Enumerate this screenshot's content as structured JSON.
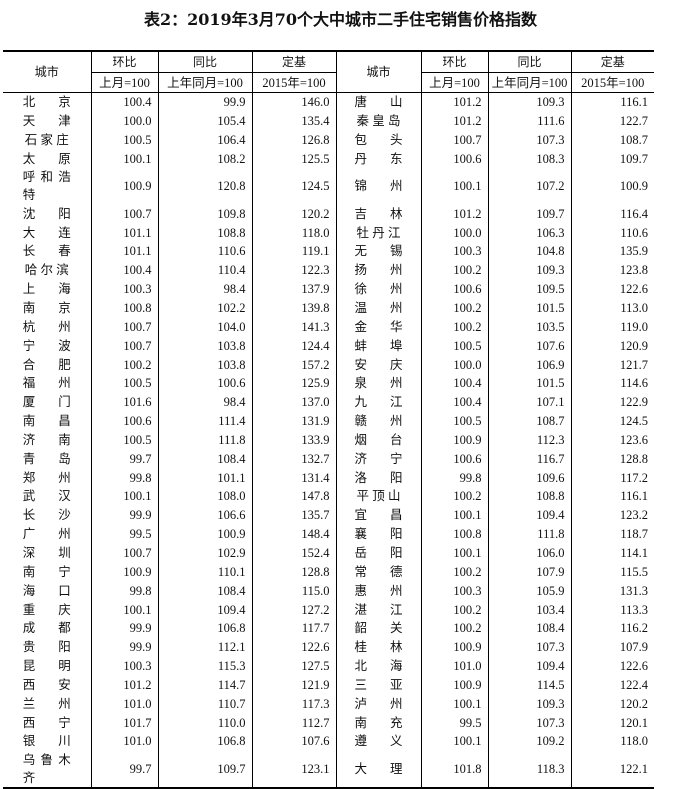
{
  "title": "表2：2019年3月70个大中城市二手住宅销售价格指数",
  "header": {
    "city": "城市",
    "mom": "环比",
    "yoy": "同比",
    "base": "定基",
    "mom_sub": "上月=100",
    "yoy_sub": "上年同月=100",
    "base_sub": "2015年=100"
  },
  "left_rows": [
    [
      "北京",
      "100.4",
      "99.9",
      "146.0"
    ],
    [
      "天津",
      "100.0",
      "105.4",
      "135.4"
    ],
    [
      "石家庄",
      "100.5",
      "106.4",
      "126.8"
    ],
    [
      "太原",
      "100.1",
      "108.2",
      "125.5"
    ],
    [
      "呼和浩特",
      "100.9",
      "120.8",
      "124.5"
    ],
    [
      "沈阳",
      "100.7",
      "109.8",
      "120.2"
    ],
    [
      "大连",
      "101.1",
      "108.8",
      "118.0"
    ],
    [
      "长春",
      "101.1",
      "110.6",
      "119.1"
    ],
    [
      "哈尔滨",
      "100.4",
      "110.4",
      "122.3"
    ],
    [
      "上海",
      "100.3",
      "98.4",
      "137.9"
    ],
    [
      "南京",
      "100.8",
      "102.2",
      "139.8"
    ],
    [
      "杭州",
      "100.7",
      "104.0",
      "141.3"
    ],
    [
      "宁波",
      "100.7",
      "103.8",
      "124.4"
    ],
    [
      "合肥",
      "100.2",
      "103.8",
      "157.2"
    ],
    [
      "福州",
      "100.5",
      "100.6",
      "125.9"
    ],
    [
      "厦门",
      "101.6",
      "98.4",
      "137.0"
    ],
    [
      "南昌",
      "100.6",
      "111.4",
      "131.9"
    ],
    [
      "济南",
      "100.5",
      "111.8",
      "133.9"
    ],
    [
      "青岛",
      "99.7",
      "108.4",
      "132.7"
    ],
    [
      "郑州",
      "99.8",
      "101.1",
      "131.4"
    ],
    [
      "武汉",
      "100.1",
      "108.0",
      "147.8"
    ],
    [
      "长沙",
      "99.9",
      "106.6",
      "135.7"
    ],
    [
      "广州",
      "99.5",
      "100.9",
      "148.4"
    ],
    [
      "深圳",
      "100.7",
      "102.9",
      "152.4"
    ],
    [
      "南宁",
      "100.9",
      "110.1",
      "128.8"
    ],
    [
      "海口",
      "99.8",
      "108.4",
      "115.0"
    ],
    [
      "重庆",
      "100.1",
      "109.4",
      "127.2"
    ],
    [
      "成都",
      "99.9",
      "106.8",
      "117.7"
    ],
    [
      "贵阳",
      "99.9",
      "112.1",
      "122.6"
    ],
    [
      "昆明",
      "100.3",
      "115.3",
      "127.5"
    ],
    [
      "西安",
      "101.2",
      "114.7",
      "121.9"
    ],
    [
      "兰州",
      "101.0",
      "110.7",
      "117.3"
    ],
    [
      "西宁",
      "101.7",
      "110.0",
      "112.7"
    ],
    [
      "银川",
      "101.0",
      "106.8",
      "107.6"
    ],
    [
      "乌鲁木齐",
      "99.7",
      "109.7",
      "123.1"
    ]
  ],
  "right_rows": [
    [
      "唐山",
      "101.2",
      "109.3",
      "116.1"
    ],
    [
      "秦皇岛",
      "101.2",
      "111.6",
      "122.7"
    ],
    [
      "包头",
      "100.7",
      "107.3",
      "108.7"
    ],
    [
      "丹东",
      "100.6",
      "108.3",
      "109.7"
    ],
    [
      "锦州",
      "100.1",
      "107.2",
      "100.9"
    ],
    [
      "吉林",
      "101.2",
      "109.7",
      "116.4"
    ],
    [
      "牡丹江",
      "100.0",
      "106.3",
      "110.6"
    ],
    [
      "无锡",
      "100.3",
      "104.8",
      "135.9"
    ],
    [
      "扬州",
      "100.2",
      "109.3",
      "123.8"
    ],
    [
      "徐州",
      "100.6",
      "109.5",
      "122.6"
    ],
    [
      "温州",
      "100.2",
      "101.5",
      "113.0"
    ],
    [
      "金华",
      "100.2",
      "103.5",
      "119.0"
    ],
    [
      "蚌埠",
      "100.5",
      "107.6",
      "120.9"
    ],
    [
      "安庆",
      "100.0",
      "106.9",
      "121.7"
    ],
    [
      "泉州",
      "100.4",
      "101.5",
      "114.6"
    ],
    [
      "九江",
      "100.4",
      "107.1",
      "122.9"
    ],
    [
      "赣州",
      "100.5",
      "108.7",
      "124.5"
    ],
    [
      "烟台",
      "100.9",
      "112.3",
      "123.6"
    ],
    [
      "济宁",
      "100.6",
      "116.7",
      "128.8"
    ],
    [
      "洛阳",
      "99.8",
      "109.6",
      "117.2"
    ],
    [
      "平顶山",
      "100.2",
      "108.8",
      "116.1"
    ],
    [
      "宜昌",
      "100.1",
      "109.4",
      "123.2"
    ],
    [
      "襄阳",
      "100.8",
      "111.8",
      "118.7"
    ],
    [
      "岳阳",
      "100.1",
      "106.0",
      "114.1"
    ],
    [
      "常德",
      "100.2",
      "107.9",
      "115.5"
    ],
    [
      "惠州",
      "100.3",
      "105.9",
      "131.3"
    ],
    [
      "湛江",
      "100.2",
      "103.4",
      "113.3"
    ],
    [
      "韶关",
      "100.2",
      "108.4",
      "116.2"
    ],
    [
      "桂林",
      "100.9",
      "107.3",
      "107.9"
    ],
    [
      "北海",
      "101.0",
      "109.4",
      "122.6"
    ],
    [
      "三亚",
      "100.9",
      "114.5",
      "122.4"
    ],
    [
      "泸州",
      "100.1",
      "109.3",
      "120.2"
    ],
    [
      "南充",
      "99.5",
      "107.3",
      "120.1"
    ],
    [
      "遵义",
      "100.1",
      "109.2",
      "118.0"
    ],
    [
      "大理",
      "101.8",
      "118.3",
      "122.1"
    ]
  ]
}
